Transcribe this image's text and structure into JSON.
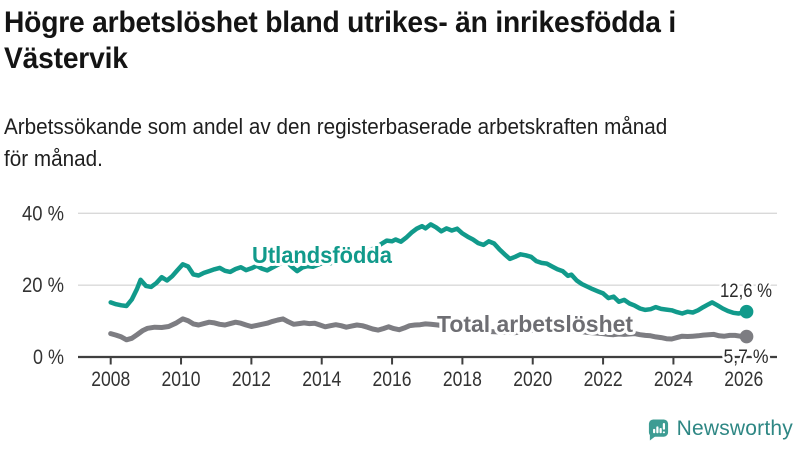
{
  "title": {
    "line1": "Högre arbetslöshet bland utrikes- än inrikesfödda i",
    "line2": "Västervik"
  },
  "subtitle": {
    "line1": "Arbetssökande som andel av den registerbaserade arbetskraften månad",
    "line2": "för månad."
  },
  "footer": {
    "brand": "Newsworthy"
  },
  "colors": {
    "accent_teal": "#119a8b",
    "line_gray": "#7d7d82",
    "gray_label": "#6e6e73",
    "axis": "#3f3f3f",
    "grid": "#d9d9d9",
    "tick_label": "#333333",
    "value_label": "#2b2b2b",
    "logo_icon": "#3d9c93",
    "logo_text": "#2e8784"
  },
  "chart_data": {
    "type": "line",
    "title": "Högre arbetslöshet bland utrikes- än inrikesfödda i Västervik",
    "subtitle": "Arbetssökande som andel av den registerbaserade arbetskraften månad för månad.",
    "unit": "%",
    "grid": "horizontal",
    "legend": "inline-labels",
    "x_axis": {
      "ticks": [
        2008,
        2010,
        2012,
        2014,
        2016,
        2018,
        2020,
        2022,
        2024,
        2026
      ]
    },
    "y_axis": {
      "range": [
        0,
        44
      ],
      "ticks": [
        {
          "value": 0,
          "label": "0 %"
        },
        {
          "value": 20,
          "label": "20 %"
        },
        {
          "value": 40,
          "label": "40 %"
        }
      ]
    },
    "series": [
      {
        "name": "Utlandsfödda",
        "color": "#119a8b",
        "end_label": "12,6 %",
        "end_value": 12.6,
        "points": [
          [
            2008,
            15.2
          ],
          [
            2008.15,
            14.7
          ],
          [
            2008.3,
            14.4
          ],
          [
            2008.45,
            14.2
          ],
          [
            2008.6,
            16
          ],
          [
            2008.75,
            19
          ],
          [
            2008.85,
            21.5
          ],
          [
            2009,
            19.8
          ],
          [
            2009.15,
            19.5
          ],
          [
            2009.3,
            20.6
          ],
          [
            2009.45,
            22.2
          ],
          [
            2009.6,
            21.3
          ],
          [
            2009.75,
            22.5
          ],
          [
            2009.9,
            24.2
          ],
          [
            2010.05,
            25.8
          ],
          [
            2010.2,
            25.2
          ],
          [
            2010.35,
            23
          ],
          [
            2010.5,
            22.7
          ],
          [
            2010.65,
            23.4
          ],
          [
            2010.8,
            23.9
          ],
          [
            2010.95,
            24.4
          ],
          [
            2011.1,
            24.8
          ],
          [
            2011.25,
            24
          ],
          [
            2011.4,
            23.7
          ],
          [
            2011.55,
            24.5
          ],
          [
            2011.7,
            25
          ],
          [
            2011.85,
            24.2
          ],
          [
            2012,
            24.7
          ],
          [
            2012.15,
            25.4
          ],
          [
            2012.3,
            24.6
          ],
          [
            2012.45,
            24.1
          ],
          [
            2012.6,
            24.9
          ],
          [
            2012.75,
            25.7
          ],
          [
            2012.9,
            26.4
          ],
          [
            2013,
            26.5
          ],
          [
            2013.15,
            25.1
          ],
          [
            2013.3,
            23.9
          ],
          [
            2013.45,
            24.9
          ],
          [
            2013.6,
            25.3
          ],
          [
            2013.75,
            25.1
          ],
          [
            2013.9,
            25.7
          ],
          [
            2014.05,
            26.3
          ],
          [
            2014.25,
            26.1
          ],
          [
            2014.45,
            26.7
          ],
          [
            2014.65,
            27.1
          ],
          [
            2014.85,
            27.6
          ],
          [
            2015.05,
            28.4
          ],
          [
            2015.25,
            29.2
          ],
          [
            2015.45,
            30.1
          ],
          [
            2015.65,
            31.2
          ],
          [
            2015.85,
            32.4
          ],
          [
            2016,
            32.2
          ],
          [
            2016.1,
            32.7
          ],
          [
            2016.25,
            32.1
          ],
          [
            2016.4,
            33.2
          ],
          [
            2016.55,
            34.6
          ],
          [
            2016.7,
            35.7
          ],
          [
            2016.85,
            36.4
          ],
          [
            2016.95,
            35.8
          ],
          [
            2017.1,
            36.9
          ],
          [
            2017.25,
            36.1
          ],
          [
            2017.4,
            35
          ],
          [
            2017.55,
            35.8
          ],
          [
            2017.7,
            35.2
          ],
          [
            2017.85,
            35.7
          ],
          [
            2018,
            34.4
          ],
          [
            2018.15,
            33.5
          ],
          [
            2018.3,
            32.7
          ],
          [
            2018.45,
            31.7
          ],
          [
            2018.6,
            31.2
          ],
          [
            2018.75,
            32.2
          ],
          [
            2018.9,
            31.6
          ],
          [
            2019.05,
            30
          ],
          [
            2019.2,
            28.6
          ],
          [
            2019.35,
            27.3
          ],
          [
            2019.5,
            27.9
          ],
          [
            2019.65,
            28.6
          ],
          [
            2019.8,
            28.3
          ],
          [
            2019.95,
            27.9
          ],
          [
            2020.1,
            26.7
          ],
          [
            2020.25,
            26.2
          ],
          [
            2020.4,
            26
          ],
          [
            2020.55,
            25.2
          ],
          [
            2020.7,
            24.4
          ],
          [
            2020.85,
            23.9
          ],
          [
            2021,
            22.6
          ],
          [
            2021.1,
            22.9
          ],
          [
            2021.25,
            21.3
          ],
          [
            2021.4,
            20.3
          ],
          [
            2021.55,
            19.6
          ],
          [
            2021.7,
            18.9
          ],
          [
            2021.85,
            18.3
          ],
          [
            2022,
            17.7
          ],
          [
            2022.15,
            16.4
          ],
          [
            2022.3,
            16.8
          ],
          [
            2022.45,
            15.4
          ],
          [
            2022.6,
            15.9
          ],
          [
            2022.75,
            14.9
          ],
          [
            2022.9,
            14.3
          ],
          [
            2023.05,
            13.5
          ],
          [
            2023.2,
            13.1
          ],
          [
            2023.35,
            13.3
          ],
          [
            2023.5,
            13.9
          ],
          [
            2023.65,
            13.4
          ],
          [
            2023.8,
            13.2
          ],
          [
            2023.95,
            13
          ],
          [
            2024.1,
            12.5
          ],
          [
            2024.25,
            12.1
          ],
          [
            2024.4,
            12.6
          ],
          [
            2024.55,
            12.4
          ],
          [
            2024.7,
            13
          ],
          [
            2024.85,
            13.9
          ],
          [
            2025,
            14.7
          ],
          [
            2025.1,
            15.2
          ],
          [
            2025.25,
            14.4
          ],
          [
            2025.4,
            13.5
          ],
          [
            2025.55,
            12.8
          ],
          [
            2025.7,
            12.3
          ],
          [
            2025.85,
            12.1
          ],
          [
            2026,
            12.4
          ],
          [
            2026.08,
            12.6
          ]
        ]
      },
      {
        "name": "Total arbetslöshet",
        "color": "#7d7d82",
        "end_label": "5,7 %",
        "end_value": 5.7,
        "points": [
          [
            2008,
            6.5
          ],
          [
            2008.15,
            6.1
          ],
          [
            2008.3,
            5.6
          ],
          [
            2008.45,
            4.8
          ],
          [
            2008.6,
            5.2
          ],
          [
            2008.75,
            6.2
          ],
          [
            2008.9,
            7.3
          ],
          [
            2009.05,
            8
          ],
          [
            2009.25,
            8.3
          ],
          [
            2009.45,
            8.2
          ],
          [
            2009.65,
            8.5
          ],
          [
            2009.85,
            9.4
          ],
          [
            2010.05,
            10.6
          ],
          [
            2010.2,
            10.1
          ],
          [
            2010.35,
            9.2
          ],
          [
            2010.5,
            8.9
          ],
          [
            2010.65,
            9.3
          ],
          [
            2010.8,
            9.7
          ],
          [
            2010.95,
            9.5
          ],
          [
            2011.1,
            9.1
          ],
          [
            2011.25,
            8.9
          ],
          [
            2011.4,
            9.3
          ],
          [
            2011.55,
            9.7
          ],
          [
            2011.7,
            9.4
          ],
          [
            2011.85,
            8.9
          ],
          [
            2012,
            8.5
          ],
          [
            2012.15,
            8.8
          ],
          [
            2012.3,
            9.1
          ],
          [
            2012.45,
            9.4
          ],
          [
            2012.6,
            9.9
          ],
          [
            2012.75,
            10.3
          ],
          [
            2012.9,
            10.6
          ],
          [
            2013.05,
            9.8
          ],
          [
            2013.2,
            9.1
          ],
          [
            2013.35,
            9.3
          ],
          [
            2013.5,
            9.5
          ],
          [
            2013.65,
            9.3
          ],
          [
            2013.8,
            9.4
          ],
          [
            2013.95,
            8.9
          ],
          [
            2014.1,
            8.4
          ],
          [
            2014.25,
            8.7
          ],
          [
            2014.4,
            9
          ],
          [
            2014.55,
            8.7
          ],
          [
            2014.7,
            8.3
          ],
          [
            2014.85,
            8.6
          ],
          [
            2015,
            8.9
          ],
          [
            2015.15,
            8.7
          ],
          [
            2015.3,
            8.3
          ],
          [
            2015.45,
            7.8
          ],
          [
            2015.6,
            7.5
          ],
          [
            2015.75,
            7.9
          ],
          [
            2015.9,
            8.4
          ],
          [
            2016.05,
            7.9
          ],
          [
            2016.2,
            7.6
          ],
          [
            2016.35,
            8.1
          ],
          [
            2016.5,
            8.7
          ],
          [
            2016.65,
            8.9
          ],
          [
            2016.8,
            9
          ],
          [
            2016.95,
            9.2
          ],
          [
            2017.1,
            9.1
          ],
          [
            2017.3,
            8.9
          ],
          [
            2017.5,
            8.6
          ],
          [
            2017.75,
            8.2
          ],
          [
            2018,
            7.9
          ],
          [
            2018.25,
            7.6
          ],
          [
            2018.5,
            7.3
          ],
          [
            2018.75,
            7.1
          ],
          [
            2019,
            7
          ],
          [
            2019.25,
            6.9
          ],
          [
            2019.5,
            6.8
          ],
          [
            2019.75,
            7.1
          ],
          [
            2020,
            7.4
          ],
          [
            2020.25,
            7.7
          ],
          [
            2020.5,
            8
          ],
          [
            2020.75,
            7.8
          ],
          [
            2021,
            7.5
          ],
          [
            2021.25,
            7.2
          ],
          [
            2021.5,
            6.9
          ],
          [
            2021.75,
            6.7
          ],
          [
            2022,
            6.5
          ],
          [
            2022.15,
            6.3
          ],
          [
            2022.3,
            6.2
          ],
          [
            2022.45,
            6.4
          ],
          [
            2022.6,
            6.3
          ],
          [
            2022.75,
            6.4
          ],
          [
            2022.9,
            6.5
          ],
          [
            2023.05,
            6.2
          ],
          [
            2023.2,
            6
          ],
          [
            2023.35,
            5.9
          ],
          [
            2023.5,
            5.6
          ],
          [
            2023.65,
            5.4
          ],
          [
            2023.8,
            5.1
          ],
          [
            2023.95,
            5
          ],
          [
            2024.1,
            5.4
          ],
          [
            2024.25,
            5.8
          ],
          [
            2024.4,
            5.7
          ],
          [
            2024.55,
            5.8
          ],
          [
            2024.7,
            5.9
          ],
          [
            2024.85,
            6.1
          ],
          [
            2025,
            6.2
          ],
          [
            2025.15,
            6.3
          ],
          [
            2025.3,
            5.9
          ],
          [
            2025.45,
            5.8
          ],
          [
            2025.6,
            6
          ],
          [
            2025.75,
            6
          ],
          [
            2025.9,
            5.8
          ],
          [
            2026,
            5.5
          ],
          [
            2026.08,
            5.7
          ]
        ]
      }
    ]
  }
}
